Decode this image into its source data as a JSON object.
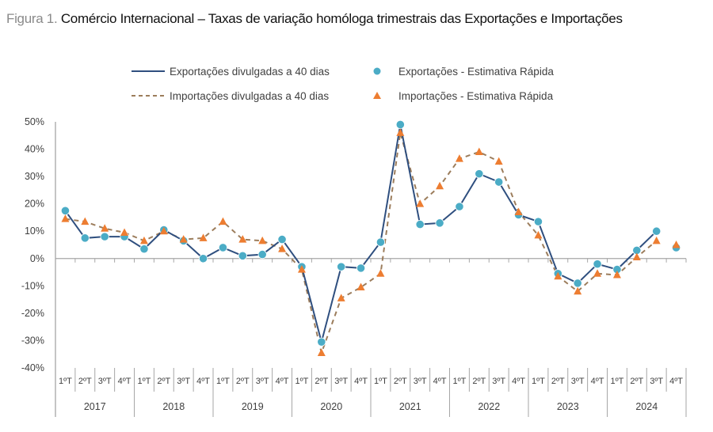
{
  "title": {
    "prefix": "Figura 1.",
    "text": "Comércio Internacional – Taxas de variação homóloga trimestrais das Exportações e Importações"
  },
  "colors": {
    "exports_line": "#2f4f7f",
    "exports_dot": "#4bacc6",
    "imports_line": "#9c7d5c",
    "imports_triangle": "#ed7d31",
    "axis": "#a6a6a6"
  },
  "chart_data": {
    "type": "line",
    "title": "Comércio Internacional – Taxas de variação homóloga trimestrais das Exportações e Importações",
    "xlabel": "",
    "ylabel": "",
    "ylim": [
      -40,
      50
    ],
    "yticks": [
      "50%",
      "40%",
      "30%",
      "20%",
      "10%",
      "0%",
      "-10%",
      "-20%",
      "-30%",
      "-40%"
    ],
    "ytick_values": [
      50,
      40,
      30,
      20,
      10,
      0,
      -10,
      -20,
      -30,
      -40
    ],
    "quarter_labels": [
      "1ºT",
      "2ºT",
      "3ºT",
      "4ºT"
    ],
    "years": [
      "2017",
      "2018",
      "2019",
      "2020",
      "2021",
      "2022",
      "2023",
      "2024"
    ],
    "legend": {
      "placement": "top-center",
      "entries": [
        "Exportações divulgadas a 40 dias",
        "Exportações - Estimativa Rápida",
        "Importações divulgadas a 40 dias",
        "Importações - Estimativa Rápida"
      ]
    },
    "series": [
      {
        "name": "Exportações divulgadas a 40 dias",
        "style": "solid-line",
        "values": [
          17.5,
          7.5,
          8,
          8,
          3.5,
          10.5,
          6.5,
          0,
          4,
          1,
          1.5,
          7,
          -3,
          -30.5,
          -3,
          -3.5,
          6,
          49,
          12.5,
          13,
          19,
          31,
          28,
          16,
          13.5,
          -5.5,
          -9,
          -2,
          -4,
          3,
          10,
          null
        ]
      },
      {
        "name": "Exportações - Estimativa Rápida",
        "style": "circle-marker",
        "values": [
          17.5,
          7.5,
          8,
          8,
          3.5,
          10.5,
          6.5,
          0,
          4,
          1,
          1.5,
          7,
          -3,
          -30.5,
          -3,
          -3.5,
          6,
          49,
          12.5,
          13,
          19,
          31,
          28,
          16,
          13.5,
          -5.5,
          -9,
          -2,
          -4,
          3,
          10,
          4
        ]
      },
      {
        "name": "Importações divulgadas a 40 dias",
        "style": "dashed-line",
        "values": [
          14.5,
          13.5,
          11,
          9.5,
          6.5,
          10,
          7,
          7.5,
          13.5,
          7,
          6.5,
          3.5,
          -4,
          -34.5,
          -14.5,
          -10.5,
          -5.5,
          46,
          20,
          26.5,
          36.5,
          39,
          35.5,
          17,
          8.5,
          -6.5,
          -12,
          -5.5,
          -6,
          0.5,
          6.5,
          null
        ]
      },
      {
        "name": "Importações - Estimativa Rápida",
        "style": "triangle-marker",
        "values": [
          14.5,
          13.5,
          11,
          9.5,
          6.5,
          10,
          7,
          7.5,
          13.5,
          7,
          6.5,
          3.5,
          -4,
          -34.5,
          -14.5,
          -10.5,
          -5.5,
          46,
          20,
          26.5,
          36.5,
          39,
          35.5,
          17,
          8.5,
          -6.5,
          -12,
          -5.5,
          -6,
          0.5,
          6.5,
          5
        ]
      }
    ]
  }
}
